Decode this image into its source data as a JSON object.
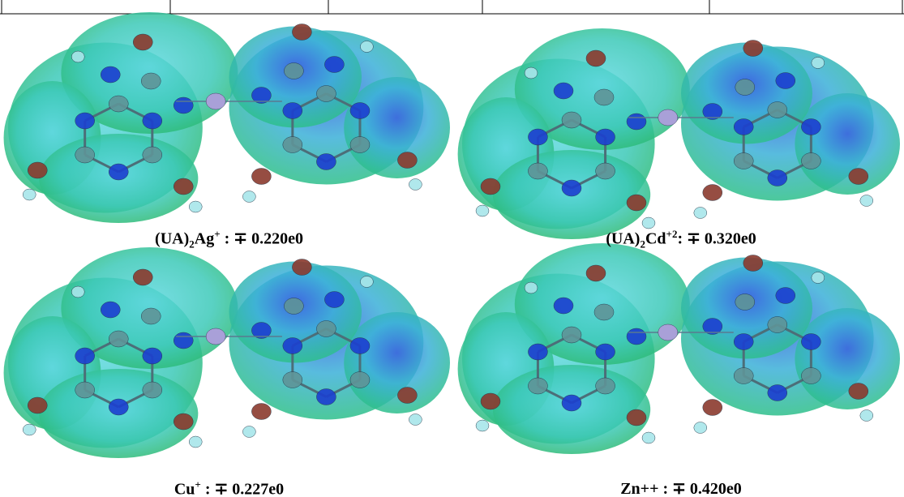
{
  "panels": [
    {
      "caption": [
        {
          "text": "(UA)",
          "style": "normal"
        },
        {
          "text": "2",
          "style": "sub"
        },
        {
          "text": "Ag",
          "style": "normal"
        },
        {
          "text": "+",
          "style": "sup"
        },
        {
          "text": " : ∓ 0.220e0",
          "style": "normal"
        }
      ]
    },
    {
      "caption": [
        {
          "text": "(UA)",
          "style": "normal"
        },
        {
          "text": "2",
          "style": "sub"
        },
        {
          "text": "Cd",
          "style": "normal"
        },
        {
          "text": "+2",
          "style": "sup"
        },
        {
          "text": ": ∓ 0.320e0",
          "style": "normal"
        }
      ]
    },
    {
      "caption": [
        {
          "text": "Cu",
          "style": "normal"
        },
        {
          "text": "+",
          "style": "sup"
        },
        {
          "text": " : ∓ 0.227e0",
          "style": "normal"
        }
      ]
    },
    {
      "caption": [
        {
          "text": "Zn++ : ∓ 0.420e0",
          "style": "normal"
        }
      ]
    }
  ]
}
